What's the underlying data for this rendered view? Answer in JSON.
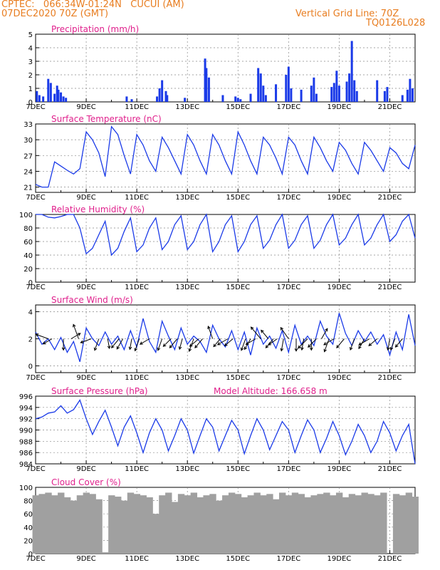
{
  "header": {
    "line1_left": "CPTEC:   066:34W-01:24N   CUCUI (AM)",
    "line2_left": "07DEC2020 70Z (GMT)",
    "line1_right": "Vertical Grid Line: 70Z",
    "line2_right": "TQ0126L028"
  },
  "colors": {
    "header": "#e87d20",
    "title": "#e0208c",
    "series": "#1a3ae8",
    "cloud": "#a0a0a0",
    "grid": "#888888"
  },
  "x_tick_labels": [
    "7DEC",
    "9DEC",
    "11DEC",
    "13DEC",
    "15DEC",
    "17DEC",
    "19DEC",
    "21DEC"
  ],
  "x_range_days": [
    7,
    22
  ],
  "model_altitude": "Model Altitude: 166.658 m",
  "chart_data": [
    {
      "id": "precip",
      "type": "bar",
      "title": "Precipitation (mm/h)",
      "ylim": [
        0,
        5
      ],
      "yticks": [
        0,
        1,
        2,
        3,
        4,
        5
      ],
      "x": [
        7.05,
        7.15,
        7.3,
        7.5,
        7.6,
        7.75,
        7.85,
        7.9,
        8.0,
        8.1,
        8.2,
        10.6,
        10.8,
        11.8,
        11.9,
        12.0,
        12.15,
        12.2,
        12.9,
        13.7,
        13.75,
        13.85,
        14.4,
        14.9,
        15.0,
        15.1,
        15.5,
        15.8,
        15.9,
        16.0,
        16.1,
        16.5,
        16.9,
        17.0,
        17.1,
        17.5,
        17.9,
        18.0,
        18.1,
        18.7,
        18.8,
        18.9,
        19.0,
        19.3,
        19.4,
        19.5,
        19.6,
        19.7,
        20.5,
        20.8,
        20.9,
        21.5,
        21.7,
        21.8,
        21.9
      ],
      "values": [
        0.8,
        0.5,
        0.4,
        1.7,
        1.4,
        0.6,
        1.2,
        0.9,
        0.7,
        0.4,
        0.3,
        0.4,
        0.2,
        0.4,
        1.0,
        1.6,
        0.8,
        0.5,
        0.3,
        3.2,
        2.5,
        1.8,
        0.5,
        0.4,
        0.3,
        0.2,
        0.6,
        2.5,
        2.1,
        1.2,
        0.5,
        1.3,
        2.0,
        2.6,
        1.0,
        0.9,
        1.2,
        1.8,
        0.6,
        1.1,
        1.4,
        2.3,
        1.2,
        1.5,
        2.1,
        4.5,
        1.6,
        0.8,
        1.6,
        0.8,
        1.1,
        0.5,
        0.9,
        1.7,
        1.0
      ]
    },
    {
      "id": "temp",
      "type": "line",
      "title": "Surface Temperature (nC)",
      "ylim": [
        20,
        33
      ],
      "yticks": [
        21,
        24,
        27,
        30,
        33
      ],
      "x": [
        7,
        7.25,
        7.5,
        7.75,
        8,
        8.25,
        8.5,
        8.75,
        9,
        9.25,
        9.5,
        9.75,
        10,
        10.25,
        10.5,
        10.75,
        11,
        11.25,
        11.5,
        11.75,
        12,
        12.25,
        12.5,
        12.75,
        13,
        13.25,
        13.5,
        13.75,
        14,
        14.25,
        14.5,
        14.75,
        15,
        15.25,
        15.5,
        15.75,
        16,
        16.25,
        16.5,
        16.75,
        17,
        17.25,
        17.5,
        17.75,
        18,
        18.25,
        18.5,
        18.75,
        19,
        19.25,
        19.5,
        19.75,
        20,
        20.25,
        20.5,
        20.75,
        21,
        21.25,
        21.5,
        21.75,
        22
      ],
      "values": [
        21.5,
        21,
        21,
        25.8,
        25,
        24.2,
        23.5,
        24.5,
        31.5,
        30,
        27.5,
        23,
        32.5,
        31,
        27,
        23.5,
        31,
        29,
        26,
        24,
        30.5,
        28.5,
        26,
        23.5,
        31,
        29,
        26,
        23.5,
        31,
        29,
        26,
        23.5,
        31.5,
        29,
        26,
        23.5,
        30.5,
        29,
        26.5,
        23.5,
        30.5,
        29,
        26,
        23.5,
        30.5,
        28.5,
        26,
        24,
        29.5,
        28,
        25.5,
        23.5,
        29.5,
        28,
        26,
        24,
        28.5,
        27.5,
        25.5,
        24.5,
        29
      ]
    },
    {
      "id": "rh",
      "type": "line",
      "title": "Relative Humidity (%)",
      "ylim": [
        0,
        100
      ],
      "yticks": [
        0,
        20,
        40,
        60,
        80,
        100
      ],
      "x": [
        7,
        7.25,
        7.5,
        7.75,
        8,
        8.25,
        8.5,
        8.75,
        9,
        9.25,
        9.5,
        9.75,
        10,
        10.25,
        10.5,
        10.75,
        11,
        11.25,
        11.5,
        11.75,
        12,
        12.25,
        12.5,
        12.75,
        13,
        13.25,
        13.5,
        13.75,
        14,
        14.25,
        14.5,
        14.75,
        15,
        15.25,
        15.5,
        15.75,
        16,
        16.25,
        16.5,
        16.75,
        17,
        17.25,
        17.5,
        17.75,
        18,
        18.25,
        18.5,
        18.75,
        19,
        19.25,
        19.5,
        19.75,
        20,
        20.25,
        20.5,
        20.75,
        21,
        21.25,
        21.5,
        21.75,
        22
      ],
      "values": [
        100,
        100,
        96,
        95,
        97,
        100,
        100,
        80,
        42,
        50,
        70,
        90,
        40,
        50,
        75,
        95,
        45,
        55,
        80,
        95,
        48,
        60,
        85,
        98,
        48,
        60,
        85,
        100,
        45,
        60,
        85,
        98,
        45,
        60,
        85,
        98,
        50,
        62,
        85,
        100,
        50,
        62,
        85,
        98,
        50,
        62,
        85,
        100,
        55,
        65,
        85,
        100,
        55,
        65,
        85,
        100,
        60,
        70,
        90,
        100,
        65
      ]
    },
    {
      "id": "wind",
      "type": "line",
      "title": "Surface Wind (m/s)",
      "ylim": [
        -0.5,
        4.5
      ],
      "yticks": [
        0,
        2,
        4
      ],
      "x": [
        7,
        7.25,
        7.5,
        7.75,
        8,
        8.25,
        8.5,
        8.75,
        9,
        9.25,
        9.5,
        9.75,
        10,
        10.25,
        10.5,
        10.75,
        11,
        11.25,
        11.5,
        11.75,
        12,
        12.25,
        12.5,
        12.75,
        13,
        13.25,
        13.5,
        13.75,
        14,
        14.25,
        14.5,
        14.75,
        15,
        15.25,
        15.5,
        15.75,
        16,
        16.25,
        16.5,
        16.75,
        17,
        17.25,
        17.5,
        17.75,
        18,
        18.25,
        18.5,
        18.75,
        19,
        19.25,
        19.5,
        19.75,
        20,
        20.25,
        20.5,
        20.75,
        21,
        21.25,
        21.5,
        21.75,
        22
      ],
      "values": [
        2.5,
        1.6,
        2.0,
        1.2,
        2.1,
        1.0,
        1.8,
        0.3,
        2.8,
        2.0,
        1.5,
        2.5,
        1.6,
        2.2,
        1.2,
        2.6,
        1.4,
        3.5,
        1.8,
        1.0,
        3.3,
        2.2,
        1.2,
        2.8,
        1.6,
        2.2,
        1.8,
        1.0,
        3.0,
        2.0,
        1.4,
        2.6,
        1.2,
        2.5,
        0.8,
        2.8,
        1.6,
        2.2,
        1.3,
        2.6,
        1.0,
        3.0,
        1.6,
        2.2,
        1.5,
        3.3,
        2.2,
        1.6,
        3.9,
        2.4,
        1.5,
        2.6,
        1.8,
        2.5,
        1.6,
        2.3,
        0.8,
        2.5,
        1.2,
        3.8,
        1.5
      ],
      "arrows_x": [
        7.5,
        7.65,
        8.1,
        8.4,
        8.7,
        9.2,
        9.5,
        9.85,
        10.3,
        10.45,
        10.8,
        11.1,
        11.5,
        12.0,
        12.35,
        12.6,
        12.8,
        13.25,
        13.45,
        13.6,
        14.0,
        14.3,
        14.6,
        14.8,
        15.3,
        15.5,
        15.7,
        15.9,
        16.2,
        16.4,
        16.55,
        16.8,
        17.0,
        17.3,
        17.6,
        17.75,
        17.9,
        18.1,
        18.3,
        18.6,
        18.8,
        19.2,
        19.6,
        20.0,
        20.2,
        20.5,
        21.0,
        21.2,
        21.5
      ],
      "arrows_speed": [
        1.8,
        1.2,
        1.4,
        1.3,
        2.2,
        1.4,
        1.6,
        1.1,
        1.5,
        1.5,
        1.3,
        1.7,
        1.3,
        1.6,
        1.3,
        1.5,
        1.3,
        1.8,
        1.5,
        1.5,
        1.8,
        1.2,
        1.5,
        1.3,
        1.6,
        1.6,
        1.4,
        2.2,
        1.4,
        1.5,
        1.3,
        1.6,
        1.9,
        1.6,
        1.4,
        1.8,
        1.4,
        1.5,
        1.5,
        1.9,
        1.5,
        1.5,
        1.5,
        1.4,
        1.6,
        1.3,
        1.4,
        1.5,
        1.3
      ],
      "arrows_dir_deg": [
        200,
        150,
        90,
        330,
        250,
        160,
        110,
        80,
        130,
        120,
        100,
        110,
        150,
        110,
        135,
        130,
        105,
        110,
        140,
        130,
        250,
        130,
        150,
        140,
        110,
        120,
        150,
        230,
        230,
        130,
        145,
        100,
        235,
        90,
        100,
        135,
        90,
        135,
        300,
        110,
        150,
        130,
        110,
        120,
        150,
        140,
        100,
        110,
        130
      ]
    },
    {
      "id": "pres",
      "type": "line",
      "title": "Surface Pressure (hPa)",
      "ylim": [
        984,
        996
      ],
      "yticks": [
        984,
        986,
        988,
        990,
        992,
        994,
        996
      ],
      "x": [
        7,
        7.25,
        7.5,
        7.75,
        8,
        8.25,
        8.5,
        8.75,
        9,
        9.25,
        9.5,
        9.75,
        10,
        10.25,
        10.5,
        10.75,
        11,
        11.25,
        11.5,
        11.75,
        12,
        12.25,
        12.5,
        12.75,
        13,
        13.25,
        13.5,
        13.75,
        14,
        14.25,
        14.5,
        14.75,
        15,
        15.25,
        15.5,
        15.75,
        16,
        16.25,
        16.5,
        16.75,
        17,
        17.25,
        17.5,
        17.75,
        18,
        18.25,
        18.5,
        18.75,
        19,
        19.25,
        19.5,
        19.75,
        20,
        20.25,
        20.5,
        20.75,
        21,
        21.25,
        21.5,
        21.75,
        22
      ],
      "values": [
        992.0,
        992.3,
        993.0,
        993.2,
        994.3,
        993.0,
        993.6,
        995.3,
        992.0,
        989.2,
        991.5,
        993.5,
        990.5,
        987.2,
        990.5,
        992.5,
        989.5,
        986.0,
        989.5,
        992.0,
        990.0,
        986.3,
        989.0,
        992.0,
        990.0,
        985.9,
        989.0,
        992.0,
        990.5,
        986.3,
        989.0,
        991.7,
        990.0,
        985.8,
        989.0,
        992.0,
        990.0,
        986.5,
        989.0,
        991.5,
        990.0,
        986.0,
        989.0,
        991.8,
        990.0,
        986.0,
        988.5,
        991.5,
        989.0,
        985.6,
        988.0,
        991.0,
        989.0,
        986.0,
        988.0,
        991.5,
        989.5,
        986.3,
        989.0,
        991.0,
        984.0
      ]
    },
    {
      "id": "cloud",
      "type": "area",
      "title": "Cloud Cover (%)",
      "ylim": [
        0,
        100
      ],
      "yticks": [
        0,
        20,
        40,
        60,
        80,
        100
      ],
      "x": [
        7,
        7.25,
        7.5,
        7.75,
        8,
        8.25,
        8.5,
        8.75,
        9,
        9.25,
        9.5,
        9.75,
        10,
        10.25,
        10.5,
        10.75,
        11,
        11.25,
        11.5,
        11.75,
        12,
        12.25,
        12.5,
        12.75,
        13,
        13.25,
        13.5,
        13.75,
        14,
        14.25,
        14.5,
        14.75,
        15,
        15.25,
        15.5,
        15.75,
        16,
        16.25,
        16.5,
        16.75,
        17,
        17.25,
        17.5,
        17.75,
        18,
        18.25,
        18.5,
        18.75,
        19,
        19.25,
        19.5,
        19.75,
        20,
        20.25,
        20.5,
        20.75,
        21,
        21.25,
        21.5,
        21.75,
        22
      ],
      "values": [
        88,
        90,
        92,
        88,
        92,
        85,
        80,
        88,
        92,
        90,
        82,
        2,
        88,
        86,
        80,
        92,
        90,
        88,
        85,
        60,
        88,
        92,
        78,
        90,
        88,
        92,
        85,
        88,
        90,
        80,
        88,
        92,
        90,
        85,
        88,
        92,
        88,
        90,
        82,
        92,
        88,
        92,
        90,
        85,
        88,
        90,
        92,
        88,
        92,
        85,
        90,
        88,
        92,
        90,
        88,
        92,
        0,
        90,
        88,
        92,
        86
      ]
    }
  ]
}
